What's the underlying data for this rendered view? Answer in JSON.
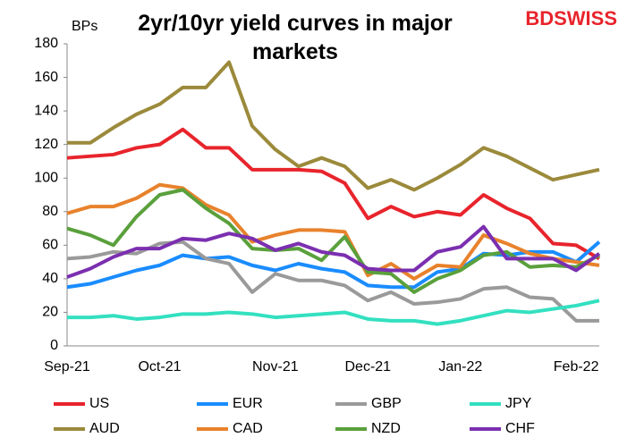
{
  "chart_data": {
    "type": "line",
    "title": "2yr/10yr yield curves in major markets",
    "y_label": "BPs",
    "logo": "BDSWISS",
    "categories": [
      "Sep-21",
      null,
      null,
      null,
      "Oct-21",
      null,
      null,
      null,
      null,
      "Nov-21",
      null,
      null,
      null,
      "Dec-21",
      null,
      null,
      null,
      "Jan-22",
      null,
      null,
      null,
      null,
      "Feb-22",
      null
    ],
    "ylim": [
      0,
      180
    ],
    "yticks": [
      0,
      20,
      40,
      60,
      80,
      100,
      120,
      140,
      160,
      180
    ],
    "grid": false,
    "legend": "bottom",
    "series": [
      {
        "name": "US",
        "color": "#e8242c",
        "values": [
          112,
          113,
          114,
          118,
          120,
          129,
          118,
          118,
          105,
          105,
          105,
          104,
          97,
          76,
          83,
          77,
          80,
          78,
          90,
          82,
          76,
          61,
          60,
          52
        ]
      },
      {
        "name": "EUR",
        "color": "#1a8cff",
        "values": [
          35,
          37,
          41,
          45,
          48,
          54,
          52,
          53,
          48,
          45,
          49,
          46,
          44,
          36,
          35,
          35,
          44,
          46,
          55,
          54,
          56,
          56,
          50,
          62
        ]
      },
      {
        "name": "GBP",
        "color": "#9a9a9a",
        "values": [
          52,
          53,
          56,
          55,
          61,
          62,
          52,
          49,
          32,
          43,
          39,
          39,
          36,
          27,
          32,
          25,
          26,
          28,
          34,
          35,
          29,
          28,
          15,
          15
        ]
      },
      {
        "name": "JPY",
        "color": "#33e0c0",
        "values": [
          17,
          17,
          18,
          16,
          17,
          19,
          19,
          20,
          19,
          17,
          18,
          19,
          20,
          16,
          15,
          15,
          13,
          15,
          18,
          21,
          20,
          22,
          24,
          27
        ]
      },
      {
        "name": "AUD",
        "color": "#9b8a3b",
        "values": [
          121,
          121,
          130,
          138,
          144,
          154,
          154,
          169,
          131,
          117,
          107,
          112,
          107,
          94,
          99,
          93,
          100,
          108,
          118,
          113,
          106,
          99,
          102,
          105
        ]
      },
      {
        "name": "CAD",
        "color": "#e8822c",
        "values": [
          79,
          83,
          83,
          88,
          96,
          94,
          84,
          78,
          62,
          66,
          69,
          69,
          68,
          42,
          49,
          40,
          48,
          47,
          66,
          61,
          55,
          52,
          50,
          48
        ]
      },
      {
        "name": "NZD",
        "color": "#5aa03c",
        "values": [
          70,
          66,
          60,
          77,
          90,
          93,
          82,
          73,
          58,
          57,
          58,
          51,
          65,
          44,
          43,
          32,
          40,
          45,
          54,
          56,
          47,
          48,
          47,
          54
        ]
      },
      {
        "name": "CHF",
        "color": "#7b2fb0",
        "values": [
          41,
          46,
          53,
          58,
          58,
          64,
          63,
          67,
          64,
          57,
          61,
          56,
          54,
          46,
          45,
          45,
          56,
          59,
          71,
          52,
          52,
          52,
          45,
          55
        ]
      }
    ]
  }
}
